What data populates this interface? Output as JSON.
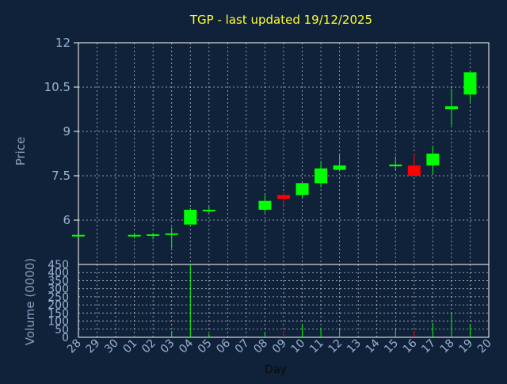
{
  "chart_data": {
    "type": "candlestick",
    "title": "TGP - last updated 19/12/2025",
    "price_axis": {
      "label": "Price",
      "ylim": [
        4.5,
        12
      ],
      "ticks": [
        6,
        7.5,
        9,
        10.5,
        12
      ]
    },
    "volume_axis": {
      "label": "Volume (0000)",
      "ylim": [
        0,
        450
      ],
      "ticks": [
        0,
        50,
        100,
        150,
        200,
        250,
        300,
        350,
        400,
        450
      ]
    },
    "x_axis": {
      "label": "Day",
      "ticks": [
        "28",
        "29",
        "30",
        "01",
        "02",
        "03",
        "04",
        "05",
        "06",
        "07",
        "08",
        "09",
        "10",
        "11",
        "12",
        "13",
        "14",
        "15",
        "16",
        "17",
        "18",
        "19",
        "20"
      ]
    },
    "grid": true,
    "colors": {
      "up": "#00ff00",
      "down": "#ff0000",
      "background": "#10213a",
      "title": "#ffff33",
      "grid": "#ffffff"
    },
    "candles": [
      {
        "day": "28",
        "open": 5.5,
        "high": 5.5,
        "low": 5.5,
        "close": 5.5,
        "volume": 2
      },
      {
        "day": "01",
        "open": 5.5,
        "high": 5.55,
        "low": 5.4,
        "close": 5.5,
        "volume": 5
      },
      {
        "day": "02",
        "open": 5.48,
        "high": 5.55,
        "low": 5.35,
        "close": 5.52,
        "volume": 10
      },
      {
        "day": "03",
        "open": 5.5,
        "high": 5.75,
        "low": 5.05,
        "close": 5.55,
        "volume": 40
      },
      {
        "day": "04",
        "open": 5.85,
        "high": 6.4,
        "low": 5.85,
        "close": 6.35,
        "volume": 450
      },
      {
        "day": "05",
        "open": 6.3,
        "high": 6.45,
        "low": 6.25,
        "close": 6.35,
        "volume": 20
      },
      {
        "day": "08",
        "open": 6.35,
        "high": 6.85,
        "low": 6.25,
        "close": 6.65,
        "volume": 30
      },
      {
        "day": "09",
        "open": 6.85,
        "high": 6.95,
        "low": 6.5,
        "close": 6.72,
        "volume": 40
      },
      {
        "day": "10",
        "open": 6.85,
        "high": 7.25,
        "low": 6.75,
        "close": 7.25,
        "volume": 80
      },
      {
        "day": "11",
        "open": 7.25,
        "high": 8.0,
        "low": 7.1,
        "close": 7.75,
        "volume": 60
      },
      {
        "day": "12",
        "open": 7.7,
        "high": 8.25,
        "low": 7.65,
        "close": 7.85,
        "volume": 50
      },
      {
        "day": "15",
        "open": 7.82,
        "high": 8.15,
        "low": 7.7,
        "close": 7.88,
        "volume": 50
      },
      {
        "day": "16",
        "open": 7.85,
        "high": 8.25,
        "low": 7.5,
        "close": 7.5,
        "volume": 40
      },
      {
        "day": "17",
        "open": 7.85,
        "high": 8.5,
        "low": 7.55,
        "close": 8.25,
        "volume": 90
      },
      {
        "day": "18",
        "open": 9.75,
        "high": 10.45,
        "low": 9.2,
        "close": 9.85,
        "volume": 150
      },
      {
        "day": "19",
        "open": 10.25,
        "high": 11.0,
        "low": 10.0,
        "close": 11.0,
        "volume": 80
      }
    ]
  }
}
